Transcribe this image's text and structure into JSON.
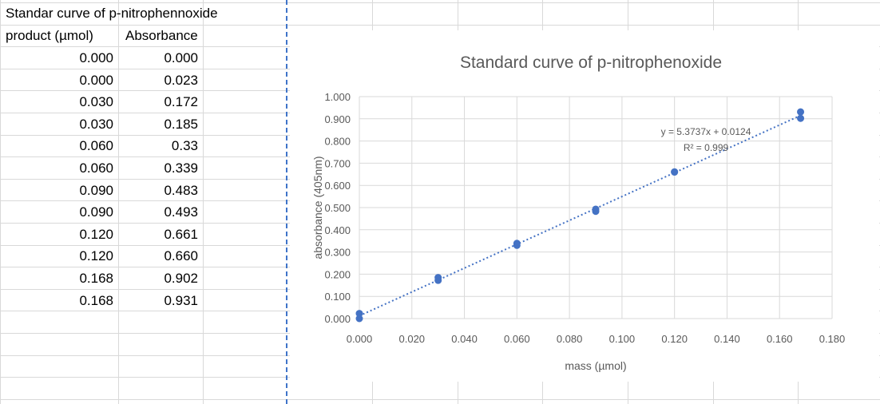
{
  "sheet": {
    "title_cell": "Standar curve of p-nitrophennoxide",
    "col_headers": [
      "product (µmol)",
      "Absorbance"
    ],
    "rows": [
      [
        "0.000",
        "0.000"
      ],
      [
        "0.000",
        "0.023"
      ],
      [
        "0.030",
        "0.172"
      ],
      [
        "0.030",
        "0.185"
      ],
      [
        "0.060",
        "0.33"
      ],
      [
        "0.060",
        "0.339"
      ],
      [
        "0.090",
        "0.483"
      ],
      [
        "0.090",
        "0.493"
      ],
      [
        "0.120",
        "0.661"
      ],
      [
        "0.120",
        "0.660"
      ],
      [
        "0.168",
        "0.902"
      ],
      [
        "0.168",
        "0.931"
      ]
    ]
  },
  "chart_data": {
    "type": "scatter",
    "title": "Standard curve of p-nitrophenoxide",
    "xlabel": "mass (µmol)",
    "ylabel": "absorbance (405nm)",
    "xlim": [
      0,
      0.18
    ],
    "ylim": [
      0,
      1.0
    ],
    "x_ticks": [
      "0.000",
      "0.020",
      "0.040",
      "0.060",
      "0.080",
      "0.100",
      "0.120",
      "0.140",
      "0.160",
      "0.180"
    ],
    "y_ticks": [
      "0.000",
      "0.100",
      "0.200",
      "0.300",
      "0.400",
      "0.500",
      "0.600",
      "0.700",
      "0.800",
      "0.900",
      "1.000"
    ],
    "grid": true,
    "series": [
      {
        "points": [
          [
            0.0,
            0.0
          ],
          [
            0.0,
            0.023
          ],
          [
            0.03,
            0.172
          ],
          [
            0.03,
            0.185
          ],
          [
            0.06,
            0.33
          ],
          [
            0.06,
            0.339
          ],
          [
            0.09,
            0.483
          ],
          [
            0.09,
            0.493
          ],
          [
            0.12,
            0.661
          ],
          [
            0.12,
            0.66
          ],
          [
            0.168,
            0.902
          ],
          [
            0.168,
            0.931
          ]
        ],
        "color": "#4472c4"
      }
    ],
    "trendline": {
      "type": "linear",
      "slope": 5.3737,
      "intercept": 0.0124,
      "color": "#4472c4"
    },
    "equation_text": "y = 5.3737x + 0.0124",
    "r2_text": "R² = 0.999",
    "colors": {
      "grid": "#d9d9d9",
      "text": "#595959",
      "title": "#595959"
    }
  }
}
